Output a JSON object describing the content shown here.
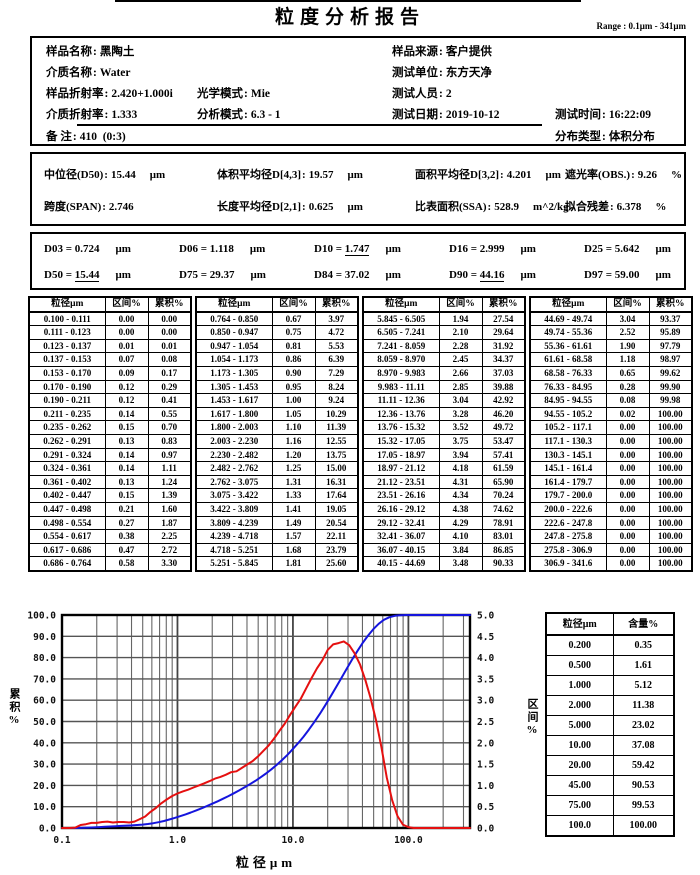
{
  "title": "粒度分析报告",
  "range_label": "Range : 0.1μm - 341μm",
  "info": {
    "sample_name": {
      "label": "样品名称",
      "value": "黑陶土"
    },
    "medium_name": {
      "label": "介质名称",
      "value": "Water"
    },
    "sample_ri": {
      "label": "样品折射率",
      "value": "2.420+1.000i"
    },
    "medium_ri": {
      "label": "介质折射率",
      "value": "1.333"
    },
    "optical_mode": {
      "label": "光学模式",
      "value": "Mie"
    },
    "analysis_mode": {
      "label": "分析模式",
      "value": "6.3 - 1"
    },
    "sample_source": {
      "label": "样品来源",
      "value": "客户提供"
    },
    "test_unit": {
      "label": "测试单位",
      "value": "东方天净"
    },
    "tester": {
      "label": "测试人员",
      "value": "2"
    },
    "test_date": {
      "label": "测试日期",
      "value": "2019-10-12"
    },
    "test_time": {
      "label": "测试时间",
      "value": "16:22:09"
    },
    "remark": {
      "label": "备 注",
      "value": "410  (0:3)"
    },
    "dist_type": {
      "label": "分布类型",
      "value": "体积分布"
    }
  },
  "stats": {
    "median": {
      "label": "中位径(D50)",
      "value": "15.44",
      "unit": "μm"
    },
    "span": {
      "label": "跨度(SPAN)",
      "value": "2.746",
      "unit": ""
    },
    "vol_mean": {
      "label": "体积平均径D[4,3]",
      "value": "19.57",
      "unit": "μm"
    },
    "len_mean": {
      "label": "长度平均径D[2,1]",
      "value": "0.625",
      "unit": "μm"
    },
    "area_mean": {
      "label": "面积平均径D[3,2]",
      "value": "4.201",
      "unit": "μm"
    },
    "ssa": {
      "label": "比表面积(SSA)",
      "value": "528.9",
      "unit": "m^2/kg"
    },
    "obscuration": {
      "label": "遮光率(OBS.)",
      "value": "9.26",
      "unit": "%"
    },
    "residual": {
      "label": "拟合残差",
      "value": "6.378",
      "unit": "%"
    }
  },
  "d_values": [
    {
      "name": "D03",
      "value": "0.724",
      "unit": "μm",
      "underline": false
    },
    {
      "name": "D06",
      "value": "1.118",
      "unit": "μm",
      "underline": false
    },
    {
      "name": "D10",
      "value": "1.747",
      "unit": "μm",
      "underline": true
    },
    {
      "name": "D16",
      "value": "2.999",
      "unit": "μm",
      "underline": false
    },
    {
      "name": "D25",
      "value": "5.642",
      "unit": "μm",
      "underline": false
    },
    {
      "name": "D50",
      "value": "15.44",
      "unit": "μm",
      "underline": true
    },
    {
      "name": "D75",
      "value": "29.37",
      "unit": "μm",
      "underline": false
    },
    {
      "name": "D84",
      "value": "37.02",
      "unit": "μm",
      "underline": false
    },
    {
      "name": "D90",
      "value": "44.16",
      "unit": "μm",
      "underline": true
    },
    {
      "name": "D97",
      "value": "59.00",
      "unit": "μm",
      "underline": false
    }
  ],
  "distribution_table": {
    "headers": [
      "粒径μm",
      "区间%",
      "累积%"
    ],
    "groups": [
      [
        [
          "0.100 - 0.111",
          "0.00",
          "0.00"
        ],
        [
          "0.111 - 0.123",
          "0.00",
          "0.00"
        ],
        [
          "0.123 - 0.137",
          "0.01",
          "0.01"
        ],
        [
          "0.137 - 0.153",
          "0.07",
          "0.08"
        ],
        [
          "0.153 - 0.170",
          "0.09",
          "0.17"
        ],
        [
          "0.170 - 0.190",
          "0.12",
          "0.29"
        ],
        [
          "0.190 - 0.211",
          "0.12",
          "0.41"
        ],
        [
          "0.211 - 0.235",
          "0.14",
          "0.55"
        ],
        [
          "0.235 - 0.262",
          "0.15",
          "0.70"
        ],
        [
          "0.262 - 0.291",
          "0.13",
          "0.83"
        ],
        [
          "0.291 - 0.324",
          "0.14",
          "0.97"
        ],
        [
          "0.324 - 0.361",
          "0.14",
          "1.11"
        ],
        [
          "0.361 - 0.402",
          "0.13",
          "1.24"
        ],
        [
          "0.402 - 0.447",
          "0.15",
          "1.39"
        ],
        [
          "0.447 - 0.498",
          "0.21",
          "1.60"
        ],
        [
          "0.498 - 0.554",
          "0.27",
          "1.87"
        ],
        [
          "0.554 - 0.617",
          "0.38",
          "2.25"
        ],
        [
          "0.617 - 0.686",
          "0.47",
          "2.72"
        ],
        [
          "0.686 - 0.764",
          "0.58",
          "3.30"
        ]
      ],
      [
        [
          "0.764 - 0.850",
          "0.67",
          "3.97"
        ],
        [
          "0.850 - 0.947",
          "0.75",
          "4.72"
        ],
        [
          "0.947 - 1.054",
          "0.81",
          "5.53"
        ],
        [
          "1.054 - 1.173",
          "0.86",
          "6.39"
        ],
        [
          "1.173 - 1.305",
          "0.90",
          "7.29"
        ],
        [
          "1.305 - 1.453",
          "0.95",
          "8.24"
        ],
        [
          "1.453 - 1.617",
          "1.00",
          "9.24"
        ],
        [
          "1.617 - 1.800",
          "1.05",
          "10.29"
        ],
        [
          "1.800 - 2.003",
          "1.10",
          "11.39"
        ],
        [
          "2.003 - 2.230",
          "1.16",
          "12.55"
        ],
        [
          "2.230 - 2.482",
          "1.20",
          "13.75"
        ],
        [
          "2.482 - 2.762",
          "1.25",
          "15.00"
        ],
        [
          "2.762 - 3.075",
          "1.31",
          "16.31"
        ],
        [
          "3.075 - 3.422",
          "1.33",
          "17.64"
        ],
        [
          "3.422 - 3.809",
          "1.41",
          "19.05"
        ],
        [
          "3.809 - 4.239",
          "1.49",
          "20.54"
        ],
        [
          "4.239 - 4.718",
          "1.57",
          "22.11"
        ],
        [
          "4.718 - 5.251",
          "1.68",
          "23.79"
        ],
        [
          "5.251 - 5.845",
          "1.81",
          "25.60"
        ]
      ],
      [
        [
          "5.845 - 6.505",
          "1.94",
          "27.54"
        ],
        [
          "6.505 - 7.241",
          "2.10",
          "29.64"
        ],
        [
          "7.241 - 8.059",
          "2.28",
          "31.92"
        ],
        [
          "8.059 - 8.970",
          "2.45",
          "34.37"
        ],
        [
          "8.970 - 9.983",
          "2.66",
          "37.03"
        ],
        [
          "9.983 - 11.11",
          "2.85",
          "39.88"
        ],
        [
          "11.11 - 12.36",
          "3.04",
          "42.92"
        ],
        [
          "12.36 - 13.76",
          "3.28",
          "46.20"
        ],
        [
          "13.76 - 15.32",
          "3.52",
          "49.72"
        ],
        [
          "15.32 - 17.05",
          "3.75",
          "53.47"
        ],
        [
          "17.05 - 18.97",
          "3.94",
          "57.41"
        ],
        [
          "18.97 - 21.12",
          "4.18",
          "61.59"
        ],
        [
          "21.12 - 23.51",
          "4.31",
          "65.90"
        ],
        [
          "23.51 - 26.16",
          "4.34",
          "70.24"
        ],
        [
          "26.16 - 29.12",
          "4.38",
          "74.62"
        ],
        [
          "29.12 - 32.41",
          "4.29",
          "78.91"
        ],
        [
          "32.41 - 36.07",
          "4.10",
          "83.01"
        ],
        [
          "36.07 - 40.15",
          "3.84",
          "86.85"
        ],
        [
          "40.15 - 44.69",
          "3.48",
          "90.33"
        ]
      ],
      [
        [
          "44.69 - 49.74",
          "3.04",
          "93.37"
        ],
        [
          "49.74 - 55.36",
          "2.52",
          "95.89"
        ],
        [
          "55.36 - 61.61",
          "1.90",
          "97.79"
        ],
        [
          "61.61 - 68.58",
          "1.18",
          "98.97"
        ],
        [
          "68.58 - 76.33",
          "0.65",
          "99.62"
        ],
        [
          "76.33 - 84.95",
          "0.28",
          "99.90"
        ],
        [
          "84.95 - 94.55",
          "0.08",
          "99.98"
        ],
        [
          "94.55 - 105.2",
          "0.02",
          "100.00"
        ],
        [
          "105.2 - 117.1",
          "0.00",
          "100.00"
        ],
        [
          "117.1 - 130.3",
          "0.00",
          "100.00"
        ],
        [
          "130.3 - 145.1",
          "0.00",
          "100.00"
        ],
        [
          "145.1 - 161.4",
          "0.00",
          "100.00"
        ],
        [
          "161.4 - 179.7",
          "0.00",
          "100.00"
        ],
        [
          "179.7 - 200.0",
          "0.00",
          "100.00"
        ],
        [
          "200.0 - 222.6",
          "0.00",
          "100.00"
        ],
        [
          "222.6 - 247.8",
          "0.00",
          "100.00"
        ],
        [
          "247.8 - 275.8",
          "0.00",
          "100.00"
        ],
        [
          "275.8 - 306.9",
          "0.00",
          "100.00"
        ],
        [
          "306.9 - 341.6",
          "0.00",
          "100.00"
        ]
      ]
    ]
  },
  "summary_table": {
    "headers": [
      "粒径μm",
      "含量%"
    ],
    "rows": [
      [
        "0.200",
        "0.35"
      ],
      [
        "0.500",
        "1.61"
      ],
      [
        "1.000",
        "5.12"
      ],
      [
        "2.000",
        "11.38"
      ],
      [
        "5.000",
        "23.02"
      ],
      [
        "10.00",
        "37.08"
      ],
      [
        "20.00",
        "59.42"
      ],
      [
        "45.00",
        "90.53"
      ],
      [
        "75.00",
        "99.53"
      ],
      [
        "100.0",
        "100.00"
      ]
    ]
  },
  "chart_data": {
    "type": "line",
    "xlabel": "粒径μm",
    "ylabel_left": "累积%",
    "ylabel_right": "区间%",
    "x_scale": "log",
    "xlim": [
      0.1,
      341.6
    ],
    "ylim_left": [
      0,
      100
    ],
    "ylim_right": [
      0,
      5
    ],
    "x_tick_values": [
      0.1,
      1,
      10,
      100
    ],
    "x_tick_labels": [
      "0.1",
      "1.0",
      "10.0",
      "100.0"
    ],
    "y_tick_step_left": 10,
    "y_tick_step_right": 0.5,
    "grid": true,
    "colors": {
      "cumulative": "#1515dd",
      "interval": "#e51010"
    },
    "series": [
      {
        "name": "累积%",
        "axis": "left",
        "color": "#1515dd",
        "x": [
          0.1,
          0.111,
          0.123,
          0.137,
          0.153,
          0.17,
          0.19,
          0.211,
          0.235,
          0.262,
          0.291,
          0.324,
          0.361,
          0.402,
          0.447,
          0.498,
          0.554,
          0.617,
          0.686,
          0.764,
          0.85,
          0.947,
          1.054,
          1.173,
          1.305,
          1.453,
          1.617,
          1.8,
          2.003,
          2.23,
          2.482,
          2.762,
          3.075,
          3.422,
          3.809,
          4.239,
          4.718,
          5.251,
          5.845,
          6.505,
          7.241,
          8.059,
          8.97,
          9.983,
          11.11,
          12.36,
          13.76,
          15.32,
          17.05,
          18.97,
          21.12,
          23.51,
          26.16,
          29.12,
          32.41,
          36.07,
          40.15,
          44.69,
          49.74,
          55.36,
          61.61,
          68.58,
          76.33,
          84.95,
          94.55,
          105.2,
          117.1,
          341.6
        ],
        "y": [
          0,
          0,
          0,
          0.01,
          0.08,
          0.17,
          0.29,
          0.41,
          0.55,
          0.7,
          0.83,
          0.97,
          1.11,
          1.24,
          1.39,
          1.6,
          1.87,
          2.25,
          2.72,
          3.3,
          3.97,
          4.72,
          5.53,
          6.39,
          7.29,
          8.24,
          9.24,
          10.29,
          11.39,
          12.55,
          13.75,
          15,
          16.31,
          17.64,
          19.05,
          20.54,
          22.11,
          23.79,
          25.6,
          27.54,
          29.64,
          31.92,
          34.37,
          37.03,
          39.88,
          42.92,
          46.2,
          49.72,
          53.47,
          57.41,
          61.59,
          65.9,
          70.24,
          74.62,
          78.91,
          83.01,
          86.85,
          90.33,
          93.37,
          95.89,
          97.79,
          98.97,
          99.62,
          99.9,
          99.98,
          100,
          100,
          100
        ]
      },
      {
        "name": "区间%",
        "axis": "right",
        "color": "#e51010",
        "x": [
          0.1,
          0.105,
          0.117,
          0.13,
          0.145,
          0.161,
          0.18,
          0.2,
          0.223,
          0.248,
          0.276,
          0.307,
          0.342,
          0.381,
          0.424,
          0.472,
          0.525,
          0.585,
          0.65,
          0.724,
          0.806,
          0.897,
          0.999,
          1.112,
          1.237,
          1.377,
          1.533,
          1.706,
          1.899,
          2.114,
          2.353,
          2.619,
          2.915,
          3.244,
          3.611,
          4.018,
          4.473,
          4.979,
          5.541,
          6.166,
          6.863,
          7.639,
          8.502,
          9.463,
          10.53,
          11.72,
          13.04,
          14.52,
          16.16,
          17.99,
          20.02,
          22.28,
          24.8,
          27.6,
          30.72,
          34.19,
          38.06,
          42.35,
          47.14,
          52.47,
          58.4,
          65,
          72.36,
          80.52,
          89.63,
          99.74,
          110.9,
          341.6
        ],
        "y": [
          0,
          0,
          0,
          0.01,
          0.07,
          0.09,
          0.12,
          0.12,
          0.14,
          0.15,
          0.13,
          0.14,
          0.14,
          0.13,
          0.15,
          0.21,
          0.27,
          0.38,
          0.47,
          0.58,
          0.67,
          0.75,
          0.81,
          0.86,
          0.9,
          0.95,
          1,
          1.05,
          1.1,
          1.16,
          1.2,
          1.25,
          1.31,
          1.33,
          1.41,
          1.49,
          1.57,
          1.68,
          1.81,
          1.94,
          2.1,
          2.28,
          2.45,
          2.66,
          2.85,
          3.04,
          3.28,
          3.52,
          3.75,
          3.94,
          4.18,
          4.31,
          4.34,
          4.38,
          4.29,
          4.1,
          3.84,
          3.48,
          3.04,
          2.52,
          1.9,
          1.18,
          0.65,
          0.28,
          0.08,
          0.02,
          0,
          0
        ]
      }
    ]
  }
}
